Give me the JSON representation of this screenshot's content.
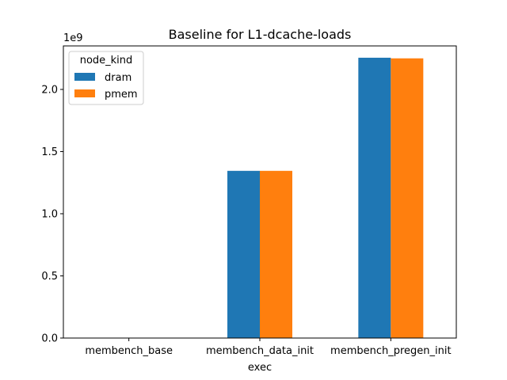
{
  "chart_data": {
    "type": "bar",
    "title": "Baseline for L1-dcache-loads",
    "xlabel": "exec",
    "ylabel": "",
    "y_offset_label": "1e9",
    "categories": [
      "membench_base",
      "membench_data_init",
      "membench_pregen_init"
    ],
    "series": [
      {
        "name": "dram",
        "color": "#1f77b4",
        "values": [
          0,
          1.345,
          2.255
        ]
      },
      {
        "name": "pmem",
        "color": "#ff7f0e",
        "values": [
          0,
          1.345,
          2.25
        ]
      }
    ],
    "ylim": [
      0,
      2.35
    ],
    "yticks": [
      0.0,
      0.5,
      1.0,
      1.5,
      2.0
    ],
    "ytick_labels": [
      "0.0",
      "0.5",
      "1.0",
      "1.5",
      "2.0"
    ],
    "value_scale": "1e9",
    "legend": {
      "title": "node_kind",
      "placement": "top-left"
    },
    "grid": false
  }
}
